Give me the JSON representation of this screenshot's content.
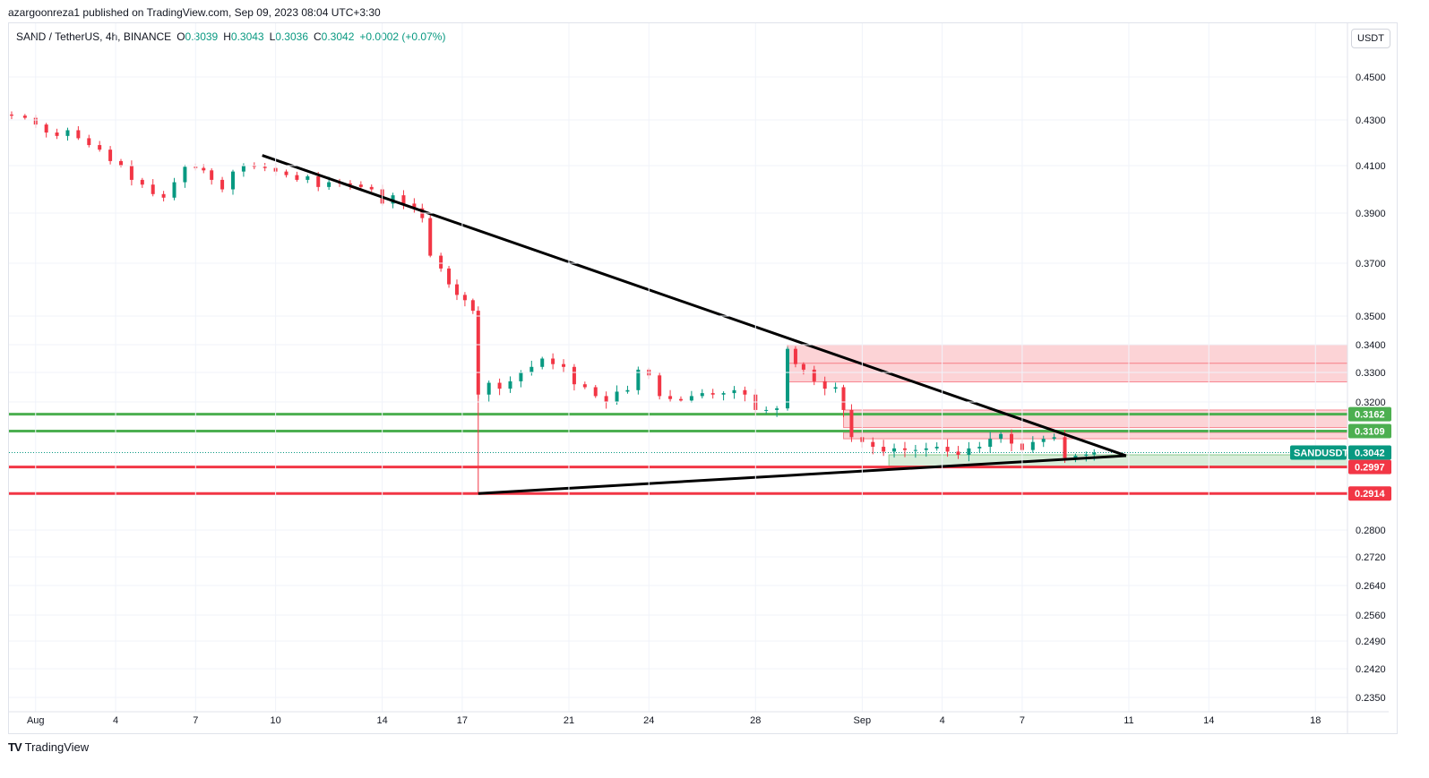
{
  "header": {
    "published": "azargoonreza1 published on TradingView.com, Sep 09, 2023 08:04 UTC+3:30"
  },
  "legend": {
    "symbol": "SAND / TetherUS, 4h, BINANCE",
    "o_label": "O",
    "o": "0.3039",
    "h_label": "H",
    "h": "0.3043",
    "l_label": "L",
    "l": "0.3036",
    "c_label": "C",
    "c": "0.3042",
    "change": "+0.0002 (+0.07%)"
  },
  "currency_button": "USDT",
  "footer": {
    "brand": "TradingView",
    "logo": "TV"
  },
  "colors": {
    "up": "#089981",
    "down": "#f23645",
    "trendline": "#000000",
    "support_green": "#4caf50",
    "support_red": "#f23645",
    "zone_red": "rgba(242,54,69,0.22)",
    "zone_green": "rgba(76,175,80,0.22)"
  },
  "chart_data": {
    "type": "candlestick",
    "symbol": "SANDUSDT",
    "interval": "4h",
    "y_axis_ticks": [
      "0.4500",
      "0.4300",
      "0.4100",
      "0.3900",
      "0.3700",
      "0.3500",
      "0.3400",
      "0.3300",
      "0.3200",
      "0.2800",
      "0.2720",
      "0.2640",
      "0.2560",
      "0.2490",
      "0.2420",
      "0.2350"
    ],
    "x_axis_ticks": [
      "Aug",
      "4",
      "7",
      "10",
      "14",
      "17",
      "21",
      "24",
      "28",
      "Sep",
      "4",
      "7",
      "11",
      "14",
      "18"
    ],
    "x_tick_days": [
      1,
      4,
      7,
      10,
      14,
      17,
      21,
      24,
      28,
      32,
      35,
      38,
      42,
      45,
      49
    ],
    "x_range_days": [
      0.0,
      50.2
    ],
    "close_path": [
      [
        0.1,
        0.432
      ],
      [
        0.6,
        0.431
      ],
      [
        1.0,
        0.428
      ],
      [
        1.4,
        0.4245
      ],
      [
        1.8,
        0.423
      ],
      [
        2.2,
        0.4255
      ],
      [
        2.6,
        0.422
      ],
      [
        3.0,
        0.419
      ],
      [
        3.4,
        0.417
      ],
      [
        3.8,
        0.412
      ],
      [
        4.2,
        0.41
      ],
      [
        4.6,
        0.404
      ],
      [
        5.0,
        0.402
      ],
      [
        5.4,
        0.398
      ],
      [
        5.8,
        0.3965
      ],
      [
        6.2,
        0.403
      ],
      [
        6.6,
        0.4095
      ],
      [
        7.0,
        0.409
      ],
      [
        7.3,
        0.408
      ],
      [
        7.6,
        0.404
      ],
      [
        8.0,
        0.4
      ],
      [
        8.4,
        0.4075
      ],
      [
        8.8,
        0.41
      ],
      [
        9.2,
        0.4095
      ],
      [
        9.6,
        0.409
      ],
      [
        10.0,
        0.4075
      ],
      [
        10.4,
        0.406
      ],
      [
        10.8,
        0.404
      ],
      [
        11.2,
        0.4055
      ],
      [
        11.6,
        0.401
      ],
      [
        12.0,
        0.403
      ],
      [
        12.4,
        0.4025
      ],
      [
        12.8,
        0.402
      ],
      [
        13.2,
        0.401
      ],
      [
        13.6,
        0.4
      ],
      [
        14.0,
        0.394
      ],
      [
        14.4,
        0.3975
      ],
      [
        14.8,
        0.394
      ],
      [
        15.2,
        0.392
      ],
      [
        15.5,
        0.388
      ],
      [
        15.8,
        0.373
      ],
      [
        16.2,
        0.368
      ],
      [
        16.5,
        0.362
      ],
      [
        16.8,
        0.358
      ],
      [
        17.1,
        0.356
      ],
      [
        17.4,
        0.352
      ],
      [
        17.6,
        0.3225
      ],
      [
        18.0,
        0.3265
      ],
      [
        18.4,
        0.3245
      ],
      [
        18.8,
        0.327
      ],
      [
        19.2,
        0.33
      ],
      [
        19.6,
        0.332
      ],
      [
        20.0,
        0.335
      ],
      [
        20.4,
        0.333
      ],
      [
        20.8,
        0.332
      ],
      [
        21.2,
        0.326
      ],
      [
        21.6,
        0.325
      ],
      [
        22.0,
        0.322
      ],
      [
        22.4,
        0.32
      ],
      [
        22.8,
        0.3235
      ],
      [
        23.2,
        0.324
      ],
      [
        23.6,
        0.331
      ],
      [
        24.0,
        0.329
      ],
      [
        24.4,
        0.322
      ],
      [
        24.8,
        0.321
      ],
      [
        25.2,
        0.3205
      ],
      [
        25.6,
        0.322
      ],
      [
        26.0,
        0.323
      ],
      [
        26.4,
        0.3225
      ],
      [
        26.8,
        0.323
      ],
      [
        27.2,
        0.324
      ],
      [
        27.6,
        0.3225
      ],
      [
        28.0,
        0.3175
      ],
      [
        28.4,
        0.3175
      ],
      [
        28.8,
        0.318
      ],
      [
        29.2,
        0.3385
      ],
      [
        29.5,
        0.333
      ],
      [
        29.8,
        0.331
      ],
      [
        30.2,
        0.327
      ],
      [
        30.6,
        0.3245
      ],
      [
        31.0,
        0.325
      ],
      [
        31.3,
        0.3175
      ],
      [
        31.6,
        0.309
      ],
      [
        32.0,
        0.3075
      ],
      [
        32.4,
        0.306
      ],
      [
        32.8,
        0.3045
      ],
      [
        33.2,
        0.3055
      ],
      [
        33.6,
        0.305
      ],
      [
        34.0,
        0.305
      ],
      [
        34.4,
        0.3055
      ],
      [
        34.8,
        0.306
      ],
      [
        35.2,
        0.3045
      ],
      [
        35.6,
        0.3035
      ],
      [
        36.0,
        0.3055
      ],
      [
        36.4,
        0.306
      ],
      [
        36.8,
        0.3085
      ],
      [
        37.2,
        0.31
      ],
      [
        37.6,
        0.307
      ],
      [
        38.0,
        0.305
      ],
      [
        38.4,
        0.3075
      ],
      [
        38.8,
        0.3085
      ],
      [
        39.2,
        0.309
      ],
      [
        39.6,
        0.3025
      ],
      [
        40.0,
        0.3032
      ],
      [
        40.4,
        0.3036
      ],
      [
        40.7,
        0.3042
      ]
    ],
    "price_levels": [
      {
        "label": "0.3162",
        "value": 0.3162,
        "style": "green"
      },
      {
        "label": "0.3109",
        "value": 0.3109,
        "style": "green"
      },
      {
        "label": "0.2997",
        "value": 0.2997,
        "style": "red"
      },
      {
        "label": "0.2914",
        "value": 0.2914,
        "style": "red"
      }
    ],
    "last_price": {
      "label": "0.3042",
      "value": 0.3042,
      "symbol_label": "SANDUSDT"
    },
    "trendlines": [
      {
        "from": [
          9.5,
          0.4145
        ],
        "to": [
          41.9,
          0.3032
        ]
      },
      {
        "from": [
          17.6,
          0.2914
        ],
        "to": [
          41.9,
          0.3032
        ]
      }
    ],
    "zones": [
      {
        "kind": "red",
        "x_from": 29.2,
        "x_to": 50.2,
        "y_top": 0.34,
        "y_bottom": 0.3268,
        "mid_line": 0.3333
      },
      {
        "kind": "red",
        "x_from": 31.3,
        "x_to": 50.2,
        "y_top": 0.3175,
        "y_bottom": 0.312
      },
      {
        "kind": "red",
        "x_from": 31.3,
        "x_to": 50.2,
        "y_top": 0.3105,
        "y_bottom": 0.3085
      },
      {
        "kind": "green",
        "x_from": 33.0,
        "x_to": 50.2,
        "y_top": 0.3035,
        "y_bottom": 0.3
      }
    ]
  }
}
